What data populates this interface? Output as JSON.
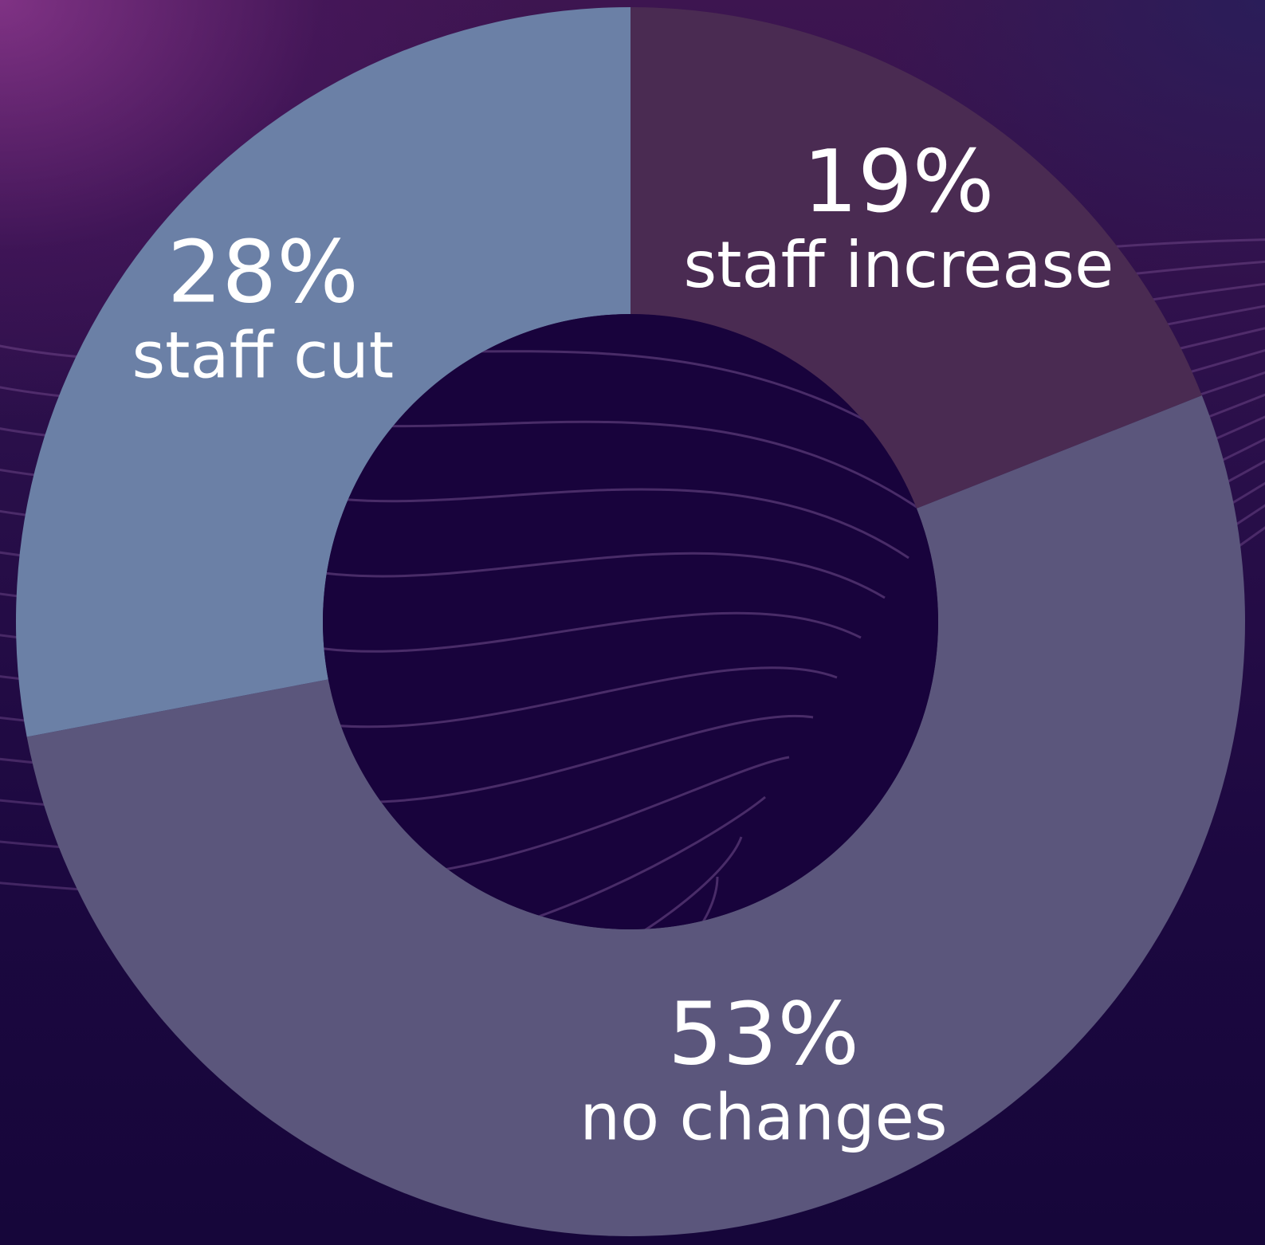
{
  "chart_data": {
    "type": "pie",
    "donut": true,
    "slices": [
      {
        "label": "staff increase",
        "value": 19,
        "value_label": "19%",
        "color": "#4a2b52"
      },
      {
        "label": "no changes",
        "value": 53,
        "value_label": "53%",
        "color": "#5b567c"
      },
      {
        "label": "staff cut",
        "value": 28,
        "value_label": "28%",
        "color": "#6b80a6"
      }
    ],
    "legend": "none",
    "center_color": "#18033c"
  }
}
